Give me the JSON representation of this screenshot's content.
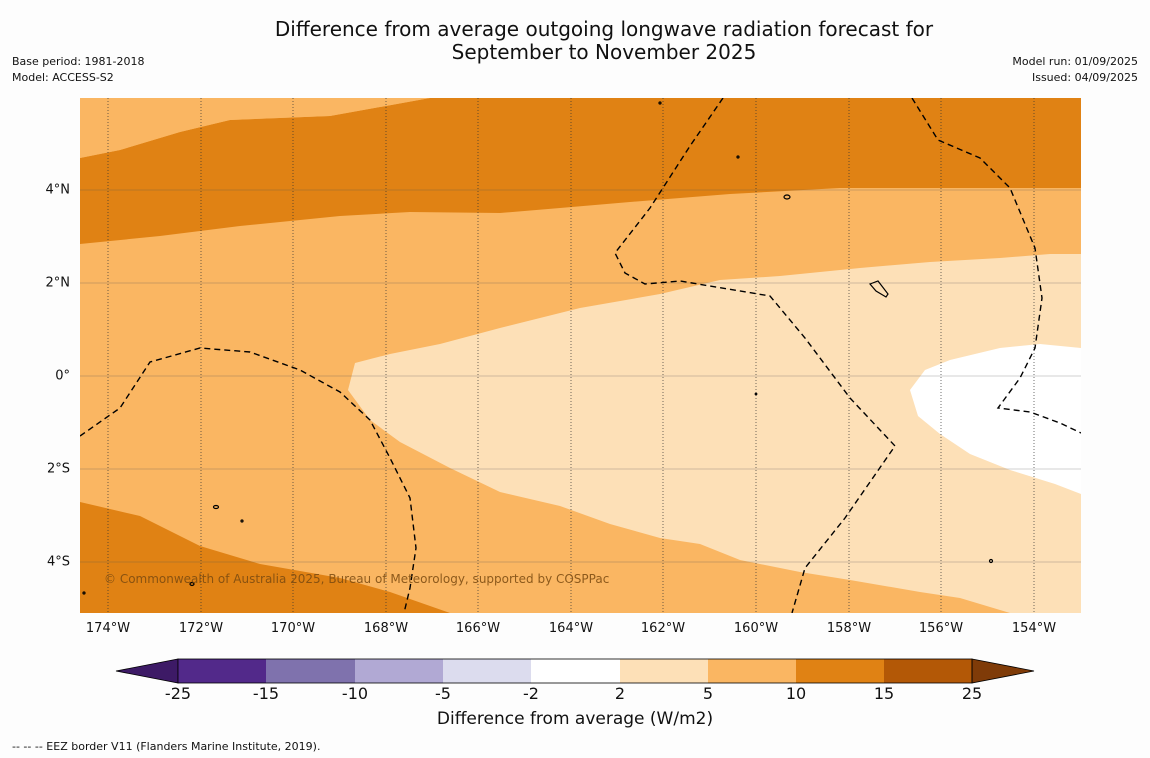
{
  "title": "Difference from average outgoing longwave radiation forecast for\nSeptember to November 2025",
  "meta_left": [
    "Base period: 1981-2018",
    "Model: ACCESS-S2"
  ],
  "meta_right": [
    "Model run: 01/09/2025",
    "Issued: 04/09/2025"
  ],
  "lat_labels": [
    {
      "label": "4°N",
      "lat": 4
    },
    {
      "label": "2°N",
      "lat": 2
    },
    {
      "label": "0°",
      "lat": 0
    },
    {
      "label": "2°S",
      "lat": -2
    },
    {
      "label": "4°S",
      "lat": -4
    }
  ],
  "lon_labels": [
    {
      "label": "174°W",
      "lon": -174
    },
    {
      "label": "172°W",
      "lon": -172
    },
    {
      "label": "170°W",
      "lon": -170
    },
    {
      "label": "168°W",
      "lon": -168
    },
    {
      "label": "166°W",
      "lon": -166
    },
    {
      "label": "164°W",
      "lon": -164
    },
    {
      "label": "162°W",
      "lon": -162
    },
    {
      "label": "160°W",
      "lon": -160
    },
    {
      "label": "158°W",
      "lon": -158
    },
    {
      "label": "156°W",
      "lon": -156
    },
    {
      "label": "154°W",
      "lon": -154
    }
  ],
  "copyright": "© Commonwealth of Australia 2025, Bureau of Meteorology, supported by COSPPac",
  "colorbar": {
    "ticks": [
      "-25",
      "-15",
      "-10",
      "-5",
      "-2",
      "2",
      "5",
      "10",
      "15",
      "25"
    ],
    "colors": [
      "#3d1a66",
      "#52298a",
      "#7f72ad",
      "#b1a9d4",
      "#dcdcee",
      "#ffffff",
      "#fde0b7",
      "#fab662",
      "#e08214",
      "#b35806",
      "#7f3b08"
    ],
    "label": "Difference from average (W/m2)"
  },
  "footnote": "--  --  -- EEZ border V11 (Flanders Marine Institute, 2019)."
}
